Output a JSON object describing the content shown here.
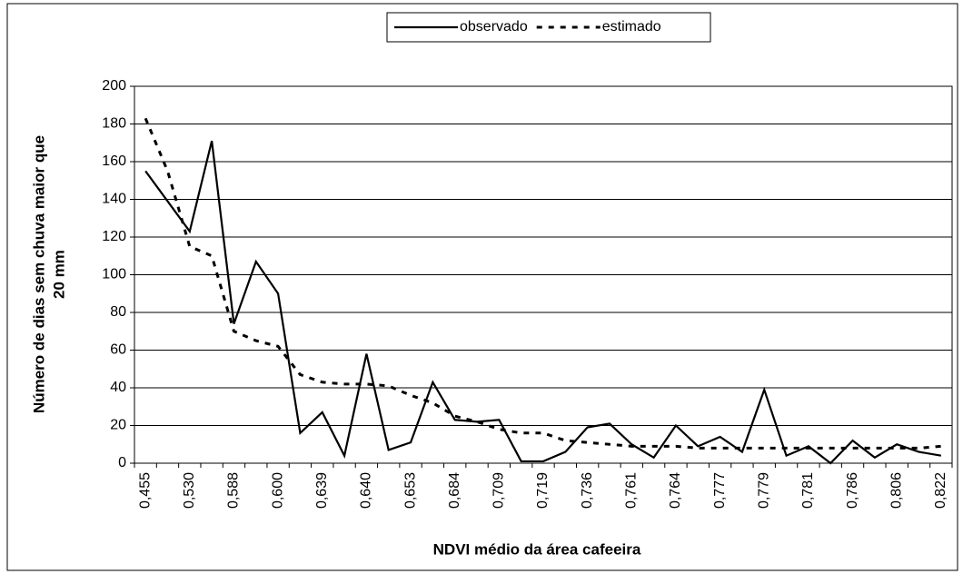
{
  "chart_data": {
    "type": "line",
    "y_label": [
      "Número de dias sem chuva maior que",
      "20 mm"
    ],
    "x_label": "NDVI médio da área cafeeira",
    "categories": [
      "0,455",
      null,
      "0,530",
      null,
      "0,588",
      null,
      "0,600",
      null,
      "0,639",
      null,
      "0,640",
      null,
      "0,653",
      null,
      "0,684",
      null,
      "0,709",
      null,
      "0,719",
      null,
      "0,736",
      null,
      "0,761",
      null,
      "0,764",
      null,
      "0,777",
      null,
      "0,779",
      null,
      "0,781",
      null,
      "0,786",
      null,
      "0,806",
      null,
      "0,822"
    ],
    "series": [
      {
        "name": "observado",
        "color": "#000000",
        "style": "solid",
        "values": [
          155,
          139,
          123,
          171,
          74,
          107,
          90,
          16,
          27,
          4,
          58,
          7,
          11,
          43,
          23,
          22,
          23,
          1,
          1,
          6,
          19,
          21,
          10,
          3,
          20,
          9,
          14,
          6,
          39,
          4,
          9,
          0,
          12,
          3,
          10,
          6,
          4
        ]
      },
      {
        "name": "estimado",
        "color": "#000000",
        "style": "dashed",
        "values": [
          183,
          155,
          115,
          110,
          70,
          65,
          62,
          47,
          43,
          42,
          42,
          41,
          36,
          32,
          25,
          22,
          18,
          16,
          16,
          12,
          11,
          10,
          9,
          9,
          9,
          8,
          8,
          8,
          8,
          8,
          8,
          8,
          8,
          8,
          8,
          8,
          9
        ]
      }
    ],
    "ylim": [
      0,
      200
    ],
    "yticks": [
      0,
      20,
      40,
      60,
      80,
      100,
      120,
      140,
      160,
      180,
      200
    ],
    "grid": true,
    "legend": "top"
  }
}
